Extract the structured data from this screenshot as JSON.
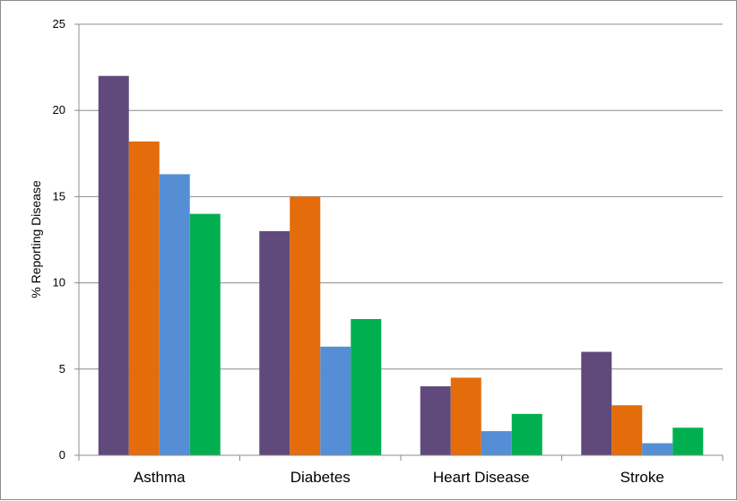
{
  "chart_data": {
    "type": "bar",
    "title": "",
    "xlabel": "",
    "ylabel": "% Reporting Disease",
    "categories": [
      "Asthma",
      "Diabetes",
      "Heart Disease",
      "Stroke"
    ],
    "series": [
      {
        "values": [
          22.0,
          13.0,
          4.0,
          6.0
        ],
        "color": "#604a7b"
      },
      {
        "values": [
          18.2,
          15.0,
          4.5,
          2.9
        ],
        "color": "#e46c0a"
      },
      {
        "values": [
          16.3,
          6.3,
          1.4,
          0.7
        ],
        "color": "#558ed5"
      },
      {
        "values": [
          14.0,
          7.9,
          2.4,
          1.6
        ],
        "color": "#00b050"
      }
    ],
    "ylim": [
      0,
      25
    ],
    "yticks": [
      "0",
      "5",
      "10",
      "15",
      "20",
      "25"
    ],
    "grid": true,
    "legend": "none"
  }
}
